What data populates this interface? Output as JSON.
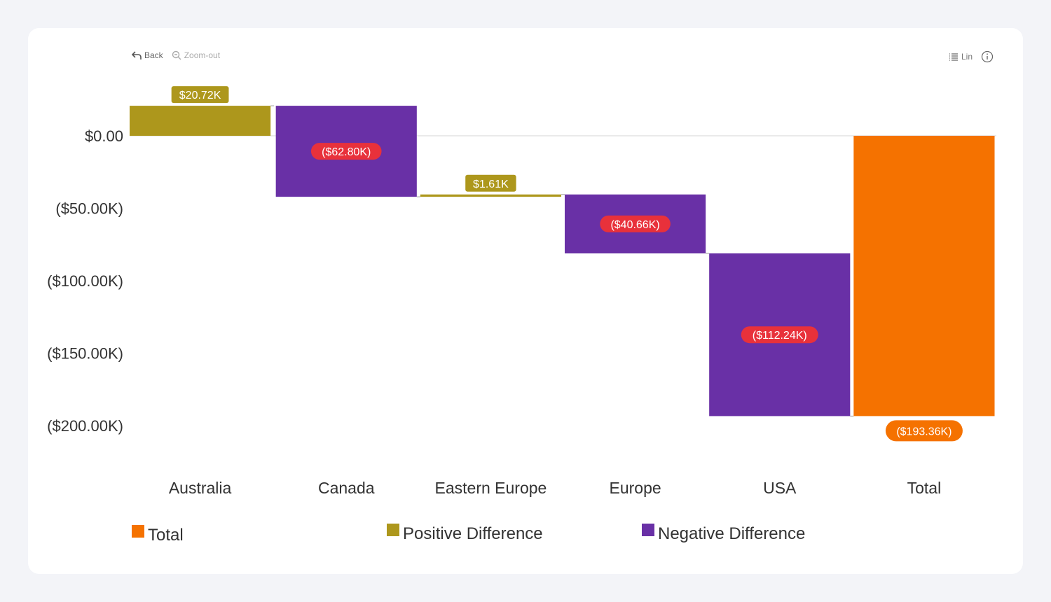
{
  "toolbar": {
    "back_label": "Back",
    "zoom_out_label": "Zoom-out",
    "scale_label": "Lin"
  },
  "colors": {
    "total": "#f57200",
    "positive": "#ad971c",
    "negative": "#6930a6",
    "negative_label_bg": "#e8313b",
    "grid": "#d6d6d6"
  },
  "chart_data": {
    "type": "bar",
    "subtype": "waterfall",
    "categories": [
      "Australia",
      "Canada",
      "Eastern Europe",
      "Europe",
      "USA",
      "Total"
    ],
    "values": [
      20.72,
      -62.8,
      1.61,
      -40.66,
      -112.24,
      -193.36
    ],
    "value_unit": "$K",
    "data_labels": [
      "$20.72K",
      "($62.80K)",
      "$1.61K",
      "($40.66K)",
      "($112.24K)",
      "($193.36K)"
    ],
    "kinds": [
      "positive",
      "negative",
      "positive",
      "negative",
      "negative",
      "total"
    ],
    "yticks": [
      0,
      -50,
      -100,
      -150,
      -200
    ],
    "ytick_labels": [
      "$0.00",
      "($50.00K)",
      "($100.00K)",
      "($150.00K)",
      "($200.00K)"
    ],
    "ylim": [
      -200,
      20.72
    ],
    "legend": [
      "Total",
      "Positive Difference",
      "Negative Difference"
    ],
    "legend_position": "bottom"
  }
}
